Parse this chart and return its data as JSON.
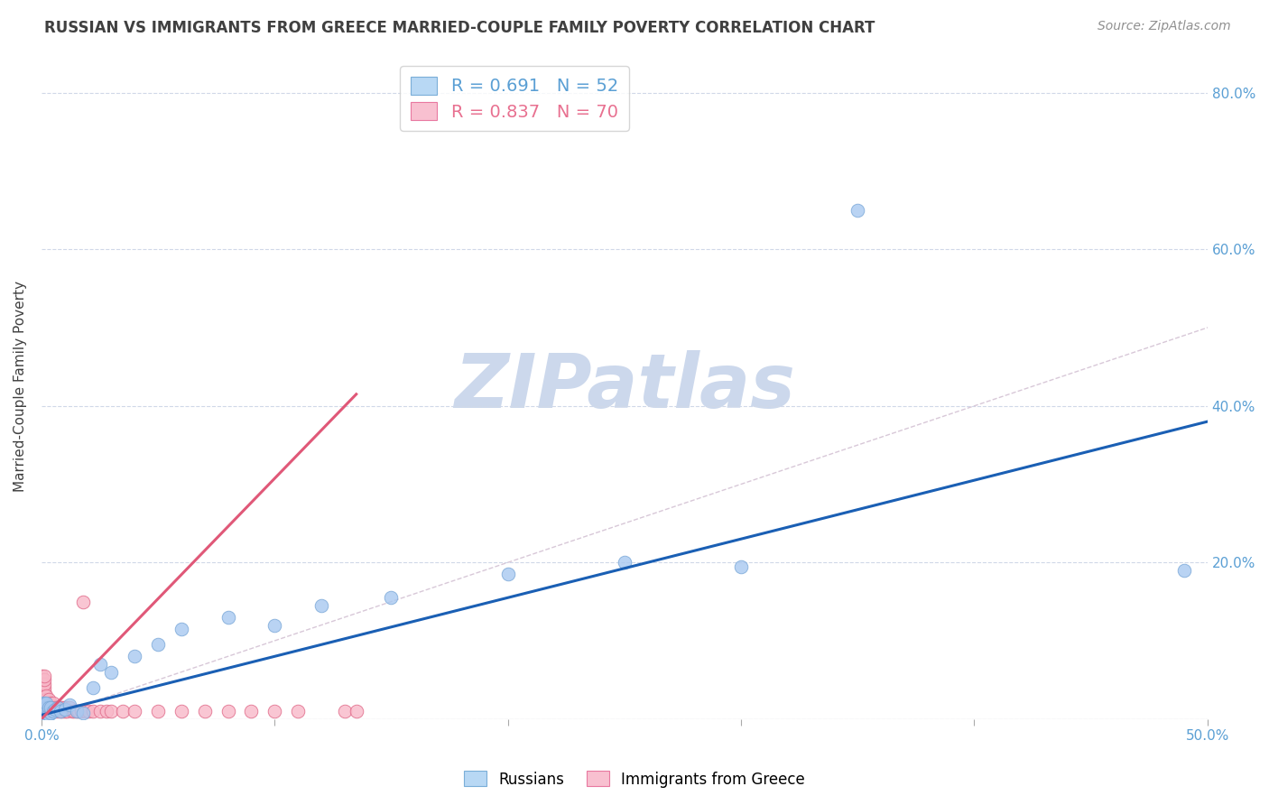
{
  "title": "RUSSIAN VS IMMIGRANTS FROM GREECE MARRIED-COUPLE FAMILY POVERTY CORRELATION CHART",
  "source": "Source: ZipAtlas.com",
  "ylabel": "Married-Couple Family Poverty",
  "xlim": [
    0,
    0.5
  ],
  "ylim": [
    0,
    0.85
  ],
  "background_color": "#ffffff",
  "grid_color": "#d0d8e8",
  "watermark_text": "ZIPatlas",
  "russian_color": "#a8c8f0",
  "russian_edge": "#7aa8d8",
  "russian_line_color": "#1a5fb4",
  "greece_color": "#f8b8c8",
  "greece_edge": "#e06888",
  "greece_line_color": "#e05878",
  "diagonal_color": "#d8c8d8",
  "legend_blue_color": "#5a9fd4",
  "legend_pink_color": "#e87090",
  "tick_color": "#5a9fd4",
  "title_color": "#404040",
  "ylabel_color": "#404040",
  "source_color": "#909090",
  "watermark_color": "#ccd8ec",
  "watermark_fontsize": 60,
  "title_fontsize": 12,
  "tick_fontsize": 11,
  "source_fontsize": 10,
  "legend_fontsize": 14,
  "axis_label_fontsize": 11,
  "russian_x": [
    0.0,
    0.0,
    0.0,
    0.0,
    0.0,
    0.0,
    0.0,
    0.0,
    0.0,
    0.0,
    0.001,
    0.001,
    0.001,
    0.001,
    0.001,
    0.001,
    0.001,
    0.001,
    0.001,
    0.001,
    0.002,
    0.002,
    0.002,
    0.002,
    0.003,
    0.003,
    0.003,
    0.004,
    0.004,
    0.005,
    0.006,
    0.007,
    0.008,
    0.01,
    0.012,
    0.015,
    0.018,
    0.022,
    0.025,
    0.03,
    0.04,
    0.05,
    0.06,
    0.08,
    0.1,
    0.12,
    0.15,
    0.2,
    0.25,
    0.3,
    0.35,
    0.49
  ],
  "russian_y": [
    0.002,
    0.004,
    0.006,
    0.008,
    0.01,
    0.012,
    0.014,
    0.016,
    0.018,
    0.02,
    0.002,
    0.004,
    0.006,
    0.008,
    0.01,
    0.012,
    0.014,
    0.016,
    0.018,
    0.02,
    0.005,
    0.01,
    0.015,
    0.02,
    0.005,
    0.01,
    0.015,
    0.008,
    0.015,
    0.01,
    0.012,
    0.015,
    0.01,
    0.012,
    0.018,
    0.01,
    0.008,
    0.04,
    0.07,
    0.06,
    0.08,
    0.095,
    0.115,
    0.13,
    0.12,
    0.145,
    0.155,
    0.185,
    0.2,
    0.195,
    0.65,
    0.19
  ],
  "greece_x": [
    0.0,
    0.0,
    0.0,
    0.0,
    0.0,
    0.0,
    0.0,
    0.0,
    0.0,
    0.0,
    0.001,
    0.001,
    0.001,
    0.001,
    0.001,
    0.001,
    0.001,
    0.001,
    0.001,
    0.001,
    0.002,
    0.002,
    0.002,
    0.002,
    0.002,
    0.003,
    0.003,
    0.003,
    0.003,
    0.004,
    0.004,
    0.004,
    0.005,
    0.005,
    0.005,
    0.006,
    0.006,
    0.007,
    0.007,
    0.008,
    0.008,
    0.009,
    0.009,
    0.01,
    0.01,
    0.011,
    0.012,
    0.013,
    0.014,
    0.015,
    0.016,
    0.017,
    0.018,
    0.019,
    0.02,
    0.022,
    0.025,
    0.028,
    0.03,
    0.035,
    0.04,
    0.05,
    0.06,
    0.07,
    0.08,
    0.09,
    0.1,
    0.11,
    0.13,
    0.135
  ],
  "greece_y": [
    0.01,
    0.015,
    0.02,
    0.025,
    0.03,
    0.035,
    0.04,
    0.045,
    0.05,
    0.055,
    0.01,
    0.015,
    0.02,
    0.025,
    0.03,
    0.035,
    0.04,
    0.045,
    0.05,
    0.055,
    0.01,
    0.015,
    0.02,
    0.025,
    0.03,
    0.01,
    0.015,
    0.02,
    0.025,
    0.01,
    0.015,
    0.02,
    0.01,
    0.015,
    0.02,
    0.01,
    0.015,
    0.01,
    0.015,
    0.01,
    0.015,
    0.01,
    0.015,
    0.01,
    0.015,
    0.01,
    0.015,
    0.01,
    0.01,
    0.01,
    0.01,
    0.01,
    0.15,
    0.01,
    0.01,
    0.01,
    0.01,
    0.01,
    0.01,
    0.01,
    0.01,
    0.01,
    0.01,
    0.01,
    0.01,
    0.01,
    0.01,
    0.01,
    0.01,
    0.01
  ],
  "russia_line_x0": 0.0,
  "russia_line_x1": 0.5,
  "russia_line_y0": 0.005,
  "russia_line_y1": 0.38,
  "greece_line_x0": 0.0,
  "greece_line_x1": 0.135,
  "greece_line_y0": 0.0,
  "greece_line_y1": 0.415
}
